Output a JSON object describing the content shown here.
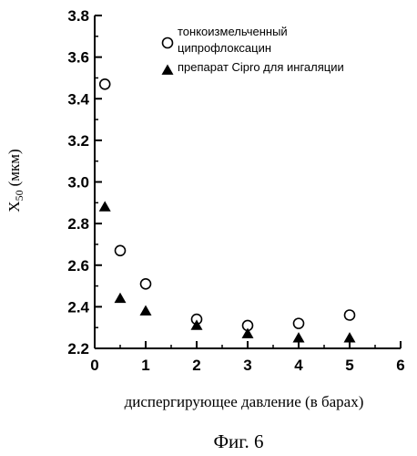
{
  "chart_data": {
    "type": "scatter",
    "xlabel": "диспергирующее давление (в барах)",
    "ylabel_main": "X",
    "ylabel_sub": "50",
    "ylabel_unit": "(мкм)",
    "xlim": [
      0,
      6
    ],
    "ylim": [
      2.2,
      3.8
    ],
    "xticks": [
      "0",
      "1",
      "2",
      "3",
      "4",
      "5",
      "6"
    ],
    "yticks": [
      "2.2",
      "2.4",
      "2.6",
      "2.8",
      "3.0",
      "3.2",
      "3.4",
      "3.6",
      "3.8"
    ],
    "grid": false,
    "legend_position": "top-right",
    "series": [
      {
        "name": "тонкоизмельченный ципрофлоксацин",
        "name_lines": [
          "тонкоизмельченный",
          "ципрофлоксацин"
        ],
        "marker": "open-circle",
        "color": "#000000",
        "x": [
          0.2,
          0.5,
          1,
          2,
          3,
          4,
          5
        ],
        "y": [
          3.47,
          2.67,
          2.51,
          2.34,
          2.31,
          2.32,
          2.36
        ]
      },
      {
        "name": "препарат Cipro для ингаляции",
        "name_lines": [
          "препарат Cipro для ингаляции"
        ],
        "marker": "filled-triangle",
        "color": "#000000",
        "x": [
          0.2,
          0.5,
          1,
          2,
          3,
          4,
          5
        ],
        "y": [
          2.88,
          2.44,
          2.38,
          2.31,
          2.27,
          2.25,
          2.25
        ]
      }
    ]
  },
  "caption": "Фиг. 6"
}
